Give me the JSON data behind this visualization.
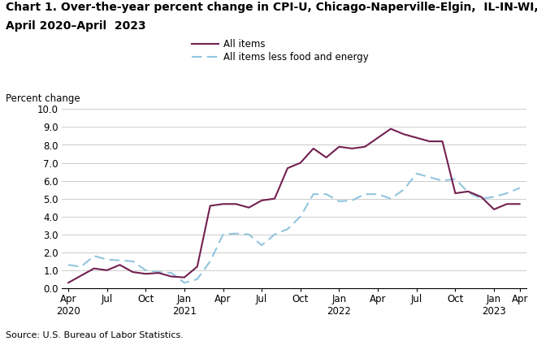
{
  "title_line1": "Chart 1. Over-the-year percent change in CPI-U, Chicago-Naperville-Elgin,  IL-IN-WI,",
  "title_line2": "April 2020–April  2023",
  "ylabel": "Percent change",
  "source": "Source: U.S. Bureau of Labor Statistics.",
  "legend_all_items": "All items",
  "legend_core": "All items less food and energy",
  "color_all_items": "#722050",
  "color_core": "#92C5DE",
  "ylim": [
    0.0,
    10.0
  ],
  "yticks": [
    0.0,
    1.0,
    2.0,
    3.0,
    4.0,
    5.0,
    6.0,
    7.0,
    8.0,
    9.0,
    10.0
  ],
  "all_items": [
    0.3,
    0.7,
    1.1,
    1.0,
    1.3,
    0.9,
    0.8,
    0.85,
    0.65,
    0.6,
    1.2,
    4.6,
    4.7,
    4.7,
    4.5,
    4.9,
    5.0,
    6.7,
    7.0,
    7.8,
    7.3,
    7.9,
    7.8,
    7.9,
    8.4,
    8.9,
    8.6,
    8.4,
    8.2,
    8.2,
    5.3,
    5.4,
    5.1,
    4.4,
    4.7,
    4.7
  ],
  "core_items": [
    1.3,
    1.2,
    1.8,
    1.6,
    1.55,
    1.5,
    1.0,
    0.9,
    0.85,
    0.3,
    0.5,
    1.5,
    3.0,
    3.05,
    3.0,
    2.4,
    3.0,
    3.3,
    4.0,
    5.25,
    5.25,
    4.85,
    4.9,
    5.25,
    5.25,
    5.0,
    5.5,
    6.4,
    6.2,
    6.0,
    6.1,
    5.35,
    5.0,
    5.1,
    5.3,
    5.6
  ],
  "tick_pos": [
    0,
    3,
    6,
    9,
    12,
    15,
    18,
    21,
    24,
    27,
    30,
    33,
    35
  ],
  "tick_labels": [
    "Apr\n2020",
    "Jul",
    "Oct",
    "Jan\n2021",
    "Apr",
    "Jul",
    "Oct",
    "Jan\n2022",
    "Apr",
    "Jul",
    "Oct",
    "Jan\n2023",
    "Apr"
  ],
  "background_color": "#ffffff",
  "grid_color": "#cccccc",
  "title_fontsize": 10,
  "tick_fontsize": 8.5,
  "ylabel_fontsize": 8.5,
  "source_fontsize": 8
}
